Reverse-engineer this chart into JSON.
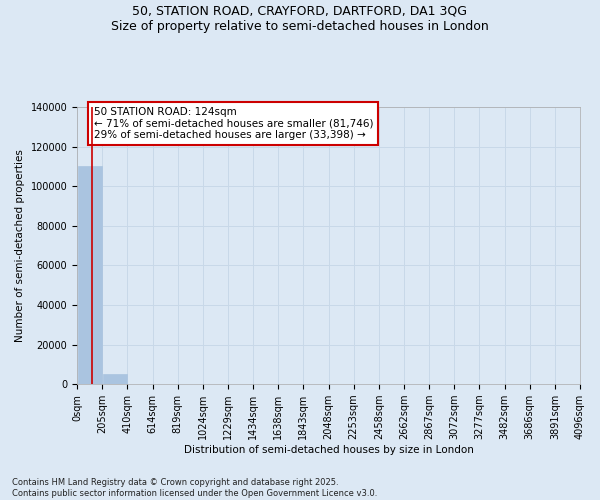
{
  "title_line1": "50, STATION ROAD, CRAYFORD, DARTFORD, DA1 3QG",
  "title_line2": "Size of property relative to semi-detached houses in London",
  "xlabel": "Distribution of semi-detached houses by size in London",
  "ylabel": "Number of semi-detached properties",
  "annotation_line1": "50 STATION ROAD: 124sqm",
  "annotation_line2": "← 71% of semi-detached houses are smaller (81,746)",
  "annotation_line3": "29% of semi-detached houses are larger (33,398) →",
  "footer": "Contains HM Land Registry data © Crown copyright and database right 2025.\nContains public sector information licensed under the Open Government Licence v3.0.",
  "subject_size": 124,
  "bin_edges": [
    0,
    205,
    410,
    614,
    819,
    1024,
    1229,
    1434,
    1638,
    1843,
    2048,
    2253,
    2458,
    2662,
    2867,
    3072,
    3277,
    3482,
    3686,
    3891,
    4096
  ],
  "bin_labels": [
    "0sqm",
    "205sqm",
    "410sqm",
    "614sqm",
    "819sqm",
    "1024sqm",
    "1229sqm",
    "1434sqm",
    "1638sqm",
    "1843sqm",
    "2048sqm",
    "2253sqm",
    "2458sqm",
    "2662sqm",
    "2867sqm",
    "3072sqm",
    "3277sqm",
    "3482sqm",
    "3686sqm",
    "3891sqm",
    "4096sqm"
  ],
  "bar_heights": [
    110000,
    5000,
    0,
    0,
    0,
    0,
    0,
    0,
    0,
    0,
    0,
    0,
    0,
    0,
    0,
    0,
    0,
    0,
    0,
    0
  ],
  "bar_color": "#aac4e0",
  "bar_edge_color": "#aac4e0",
  "subject_line_color": "#cc0000",
  "annotation_box_edge_color": "#cc0000",
  "annotation_box_face_color": "#ffffff",
  "grid_color": "#c8d8e8",
  "background_color": "#dce8f4",
  "ylim": [
    0,
    140000
  ],
  "yticks": [
    0,
    20000,
    40000,
    60000,
    80000,
    100000,
    120000,
    140000
  ],
  "title_fontsize": 9,
  "label_fontsize": 7.5,
  "tick_fontsize": 7,
  "annotation_fontsize": 7.5,
  "footer_fontsize": 6
}
